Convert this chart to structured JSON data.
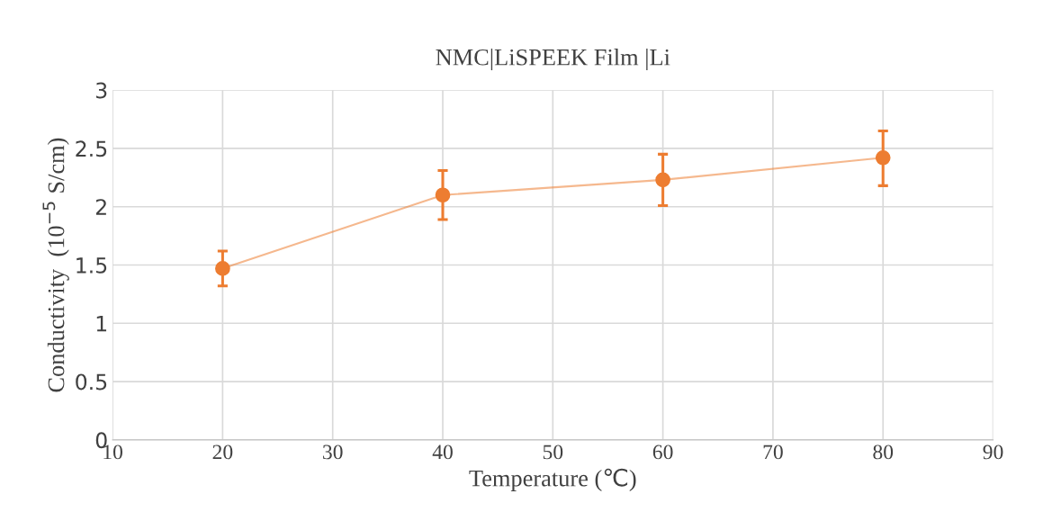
{
  "chart_data": {
    "type": "line",
    "title": "NMC|LiSPEEK Film |Li",
    "xlabel": "Temperature (℃)",
    "ylabel": "Conductivity  (10$^{−5}$ S/cm)",
    "x": [
      20,
      40,
      60,
      80
    ],
    "series": [
      {
        "color": "#ed7d31",
        "values": [
          1.47,
          2.1,
          2.23,
          2.42
        ],
        "errors": [
          [
            1.32,
            1.62
          ],
          [
            1.89,
            2.31
          ],
          [
            2.01,
            2.45
          ],
          [
            2.18,
            2.65
          ]
        ]
      }
    ],
    "xlim": [
      10,
      90
    ],
    "xticks": [
      10,
      20,
      30,
      40,
      50,
      60,
      70,
      80,
      90
    ],
    "ylim": [
      0,
      3
    ],
    "yticks": [
      0,
      {
        "value": 0.5,
        "label": "0.5"
      },
      1,
      {
        "value": 1.5,
        "label": "1.5"
      },
      2,
      {
        "value": 2.5,
        "label": "2.5"
      },
      3
    ],
    "grid": true,
    "marker": "circle",
    "line_style": "solid",
    "legend": false
  }
}
